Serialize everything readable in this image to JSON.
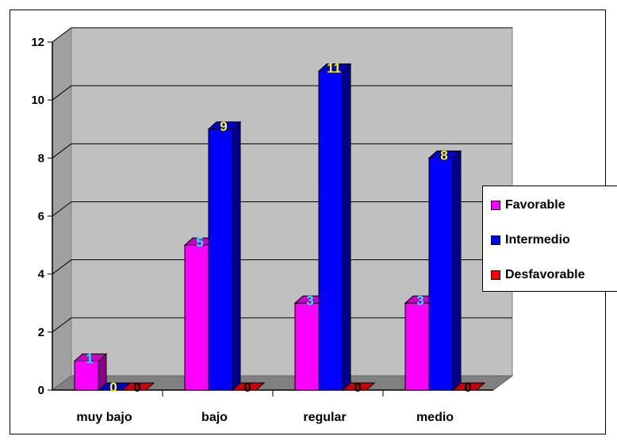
{
  "chart_data": {
    "type": "bar",
    "categories": [
      "muy bajo",
      "bajo",
      "regular",
      "medio"
    ],
    "series": [
      {
        "name": "Favorable",
        "values": [
          1,
          5,
          3,
          3
        ],
        "color": "#ff00ff",
        "label_color": "#00ffff"
      },
      {
        "name": "Intermedio",
        "values": [
          0,
          9,
          11,
          8
        ],
        "color": "#0000ff",
        "label_color": "#ffff00"
      },
      {
        "name": "Desfavorable",
        "values": [
          0,
          0,
          0,
          0
        ],
        "color": "#ff0000",
        "label_color": "#000000"
      }
    ],
    "ylim": [
      0,
      12
    ],
    "yticks": [
      0,
      2,
      4,
      6,
      8,
      10,
      12
    ],
    "grid": true,
    "legend": "right",
    "plot_background": "#c0c0c0"
  }
}
